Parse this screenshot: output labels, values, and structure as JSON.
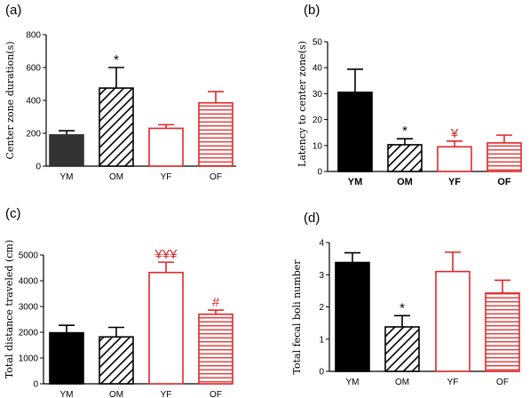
{
  "colors": {
    "black": "#000000",
    "dark": "#333333",
    "red": "#e0282a"
  },
  "chart_data": [
    {
      "panel": "(a)",
      "type": "bar",
      "ylabel": "Center zone duration(s)",
      "categories": [
        "YM",
        "OM",
        "YF",
        "OF"
      ],
      "values": [
        190,
        475,
        230,
        385
      ],
      "errors": [
        25,
        125,
        22,
        68
      ],
      "styles": [
        "solid-dark",
        "hatch-black",
        "open-red",
        "hlines-red"
      ],
      "annotations": [
        "",
        "*",
        "",
        ""
      ],
      "ylim": [
        0,
        800
      ],
      "yticks": [
        0,
        200,
        400,
        600,
        800
      ],
      "bold_categories": false
    },
    {
      "panel": "(b)",
      "type": "bar",
      "ylabel": "Latency to center zone(s)",
      "categories": [
        "YM",
        "OM",
        "YF",
        "OF"
      ],
      "values": [
        30.5,
        10.3,
        9.5,
        11
      ],
      "errors": [
        8.9,
        2.3,
        2.2,
        3
      ],
      "styles": [
        "solid-black",
        "hatch-black",
        "open-red",
        "hlines-red"
      ],
      "annotations": [
        "",
        "*",
        "¥",
        ""
      ],
      "ylim": [
        0,
        50
      ],
      "yticks": [
        0,
        10,
        20,
        30,
        40,
        50
      ],
      "bold_categories": true
    },
    {
      "panel": "(c)",
      "type": "bar",
      "ylabel": "Total distance traveled (cm)",
      "categories": [
        "YM",
        "OM",
        "YF",
        "OF"
      ],
      "values": [
        1980,
        1820,
        4320,
        2700
      ],
      "errors": [
        290,
        370,
        400,
        160
      ],
      "styles": [
        "solid-black",
        "hatch-black",
        "open-red",
        "hlines-red"
      ],
      "annotations": [
        "",
        "",
        "¥¥¥",
        "#"
      ],
      "ylim": [
        0,
        5000
      ],
      "yticks": [
        0,
        1000,
        2000,
        3000,
        4000,
        5000
      ],
      "bold_categories": false
    },
    {
      "panel": "(d)",
      "type": "bar",
      "ylabel": "Total fecal boli number",
      "categories": [
        "YM",
        "OM",
        "YF",
        "OF"
      ],
      "values": [
        3.38,
        1.38,
        3.1,
        2.43
      ],
      "errors": [
        0.3,
        0.35,
        0.6,
        0.4
      ],
      "styles": [
        "solid-black",
        "hatch-black",
        "open-red",
        "hlines-red"
      ],
      "annotations": [
        "",
        "*",
        "",
        ""
      ],
      "ylim": [
        0,
        4
      ],
      "yticks": [
        0,
        1,
        2,
        3,
        4
      ],
      "bold_categories": false
    }
  ]
}
